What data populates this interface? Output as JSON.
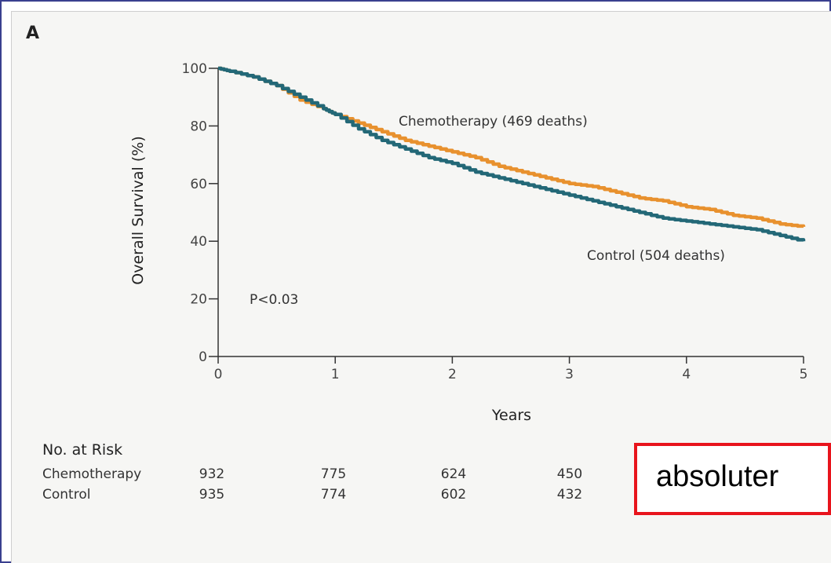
{
  "panel_label": "A",
  "chart_data": {
    "type": "line",
    "xlabel": "Years",
    "ylabel": "Overall Survival (%)",
    "xlim": [
      0,
      5
    ],
    "ylim": [
      0,
      100
    ],
    "x_ticks": [
      "0",
      "1",
      "2",
      "3",
      "4",
      "5"
    ],
    "y_ticks": [
      "0",
      "20",
      "40",
      "60",
      "80",
      "100"
    ],
    "grid": false,
    "series": [
      {
        "name": "Chemotherapy (469 deaths)",
        "color": "#e8912e",
        "x": [
          0,
          0.1,
          0.3,
          0.5,
          0.7,
          0.9,
          1.0,
          1.2,
          1.4,
          1.6,
          1.8,
          2.0,
          2.2,
          2.4,
          2.6,
          2.8,
          3.0,
          3.2,
          3.4,
          3.6,
          3.8,
          4.0,
          4.2,
          4.4,
          4.6,
          4.8,
          5.0
        ],
        "y": [
          100,
          99,
          97,
          94,
          89,
          86,
          84,
          81,
          78,
          75,
          73,
          71,
          69,
          66,
          64,
          62,
          60,
          59,
          57,
          55,
          54,
          52,
          51,
          49,
          48,
          46,
          45
        ]
      },
      {
        "name": "Control (504 deaths)",
        "color": "#236877",
        "x": [
          0,
          0.1,
          0.3,
          0.5,
          0.7,
          0.9,
          1.0,
          1.2,
          1.4,
          1.6,
          1.8,
          2.0,
          2.2,
          2.4,
          2.6,
          2.8,
          3.0,
          3.2,
          3.4,
          3.6,
          3.8,
          4.0,
          4.2,
          4.4,
          4.6,
          4.8,
          5.0
        ],
        "y": [
          100,
          99,
          97,
          94,
          90,
          86,
          84,
          79,
          75,
          72,
          69,
          67,
          64,
          62,
          60,
          58,
          56,
          54,
          52,
          50,
          48,
          47,
          46,
          45,
          44,
          42,
          40
        ]
      }
    ],
    "annotations": [
      "P<0.03"
    ]
  },
  "risk_table": {
    "heading": "No. at Risk",
    "rows": [
      {
        "name": "Chemotherapy",
        "values": [
          "932",
          "775",
          "624",
          "450"
        ]
      },
      {
        "name": "Control",
        "values": [
          "935",
          "774",
          "602",
          "432"
        ]
      }
    ]
  },
  "overlay_label": "absoluter"
}
